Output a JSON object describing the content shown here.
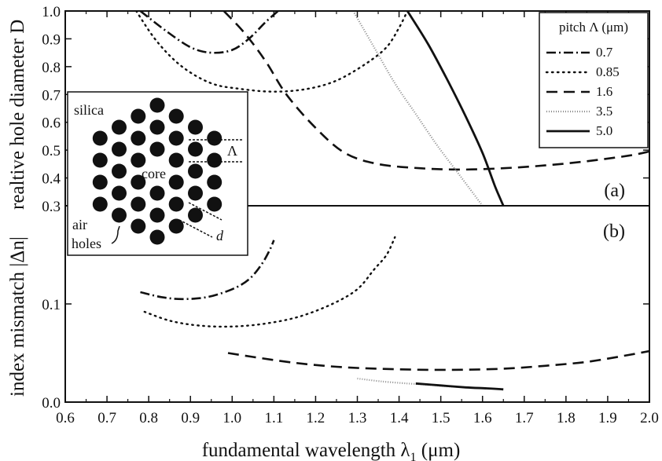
{
  "chart_data": [
    {
      "panel": "a",
      "type": "line",
      "panel_label": "(a)",
      "xlabel": "fundamental wavelength λ1 (μm)",
      "xlabel_main": "fundamental wavelength λ",
      "xlabel_sub": "1",
      "xlabel_unit": " (μm)",
      "ylabel": "realtive hole diameter D",
      "xlim": [
        0.6,
        2.0
      ],
      "ylim": [
        0.3,
        1.0
      ],
      "x_ticks": [
        "0.6",
        "0.7",
        "0.8",
        "0.9",
        "1.0",
        "1.1",
        "1.2",
        "1.3",
        "1.4",
        "1.5",
        "1.6",
        "1.7",
        "1.8",
        "1.9",
        "2.0"
      ],
      "y_ticks": [
        "0.3",
        "0.4",
        "0.5",
        "0.6",
        "0.7",
        "0.8",
        "0.9",
        "1.0"
      ],
      "legend": {
        "title": "pitch Λ (μm)",
        "placement": "top-right"
      },
      "series": [
        {
          "name": "0.7",
          "style": "dash-dot",
          "points": [
            [
              0.78,
              1.0
            ],
            [
              0.84,
              0.93
            ],
            [
              0.9,
              0.87
            ],
            [
              0.95,
              0.85
            ],
            [
              1.0,
              0.86
            ],
            [
              1.04,
              0.9
            ],
            [
              1.08,
              0.96
            ],
            [
              1.11,
              1.0
            ]
          ]
        },
        {
          "name": "0.85",
          "style": "dotted",
          "points": [
            [
              0.77,
              1.0
            ],
            [
              0.82,
              0.89
            ],
            [
              0.88,
              0.8
            ],
            [
              0.95,
              0.74
            ],
            [
              1.02,
              0.72
            ],
            [
              1.1,
              0.71
            ],
            [
              1.18,
              0.72
            ],
            [
              1.25,
              0.75
            ],
            [
              1.32,
              0.81
            ],
            [
              1.37,
              0.87
            ],
            [
              1.4,
              0.94
            ],
            [
              1.42,
              1.0
            ]
          ]
        },
        {
          "name": "1.6",
          "style": "dashed",
          "points": [
            [
              0.98,
              1.0
            ],
            [
              1.03,
              0.92
            ],
            [
              1.08,
              0.82
            ],
            [
              1.13,
              0.7
            ],
            [
              1.2,
              0.58
            ],
            [
              1.27,
              0.49
            ],
            [
              1.35,
              0.45
            ],
            [
              1.45,
              0.435
            ],
            [
              1.55,
              0.43
            ],
            [
              1.65,
              0.435
            ],
            [
              1.75,
              0.445
            ],
            [
              1.85,
              0.46
            ],
            [
              1.95,
              0.48
            ],
            [
              2.0,
              0.495
            ]
          ]
        },
        {
          "name": "3.5",
          "style": "fine-dotted",
          "points": [
            [
              1.29,
              1.0
            ],
            [
              1.34,
              0.87
            ],
            [
              1.39,
              0.74
            ],
            [
              1.44,
              0.63
            ],
            [
              1.49,
              0.52
            ],
            [
              1.54,
              0.42
            ],
            [
              1.58,
              0.34
            ],
            [
              1.6,
              0.3
            ]
          ]
        },
        {
          "name": "5.0",
          "style": "solid",
          "points": [
            [
              1.42,
              1.0
            ],
            [
              1.47,
              0.88
            ],
            [
              1.52,
              0.74
            ],
            [
              1.56,
              0.62
            ],
            [
              1.6,
              0.49
            ],
            [
              1.63,
              0.37
            ],
            [
              1.65,
              0.3
            ]
          ]
        }
      ]
    },
    {
      "panel": "b",
      "type": "line",
      "panel_label": "(b)",
      "xlabel": "fundamental wavelength λ1 (μm)",
      "ylabel": "index mismatch |Δn|",
      "xlim": [
        0.6,
        2.0
      ],
      "ylim": [
        0.0,
        0.2
      ],
      "y_ticks": [
        "0.0",
        "0.1"
      ],
      "series": [
        {
          "name": "0.7",
          "style": "dash-dot",
          "points": [
            [
              0.78,
              0.112
            ],
            [
              0.83,
              0.107
            ],
            [
              0.88,
              0.105
            ],
            [
              0.94,
              0.107
            ],
            [
              1.0,
              0.115
            ],
            [
              1.04,
              0.125
            ],
            [
              1.07,
              0.14
            ],
            [
              1.09,
              0.155
            ],
            [
              1.1,
              0.165
            ]
          ]
        },
        {
          "name": "0.85",
          "style": "dotted",
          "points": [
            [
              0.79,
              0.092
            ],
            [
              0.85,
              0.083
            ],
            [
              0.92,
              0.078
            ],
            [
              1.0,
              0.077
            ],
            [
              1.08,
              0.08
            ],
            [
              1.16,
              0.087
            ],
            [
              1.24,
              0.1
            ],
            [
              1.3,
              0.115
            ],
            [
              1.34,
              0.135
            ],
            [
              1.37,
              0.15
            ],
            [
              1.39,
              0.168
            ]
          ]
        },
        {
          "name": "1.6",
          "style": "dashed",
          "points": [
            [
              0.99,
              0.05
            ],
            [
              1.05,
              0.046
            ],
            [
              1.15,
              0.04
            ],
            [
              1.25,
              0.036
            ],
            [
              1.35,
              0.034
            ],
            [
              1.45,
              0.033
            ],
            [
              1.55,
              0.033
            ],
            [
              1.65,
              0.034
            ],
            [
              1.75,
              0.037
            ],
            [
              1.85,
              0.041
            ],
            [
              1.95,
              0.048
            ],
            [
              2.0,
              0.052
            ]
          ]
        },
        {
          "name": "3.5",
          "style": "fine-dotted",
          "points": [
            [
              1.3,
              0.024
            ],
            [
              1.36,
              0.021
            ],
            [
              1.42,
              0.019
            ],
            [
              1.46,
              0.018
            ],
            [
              1.52,
              0.016
            ],
            [
              1.57,
              0.015
            ]
          ]
        },
        {
          "name": "5.0",
          "style": "solid",
          "points": [
            [
              1.44,
              0.019
            ],
            [
              1.5,
              0.017
            ],
            [
              1.56,
              0.015
            ],
            [
              1.61,
              0.014
            ],
            [
              1.65,
              0.013
            ]
          ]
        }
      ]
    }
  ],
  "inset": {
    "label_silica": "silica",
    "label_core": "core",
    "label_air": "air",
    "label_holes": "holes",
    "label_pitch": "Λ",
    "label_d": "d"
  },
  "colors": {
    "ink": "#111111",
    "light_dot": "#8a8a8a",
    "background": "#ffffff"
  }
}
